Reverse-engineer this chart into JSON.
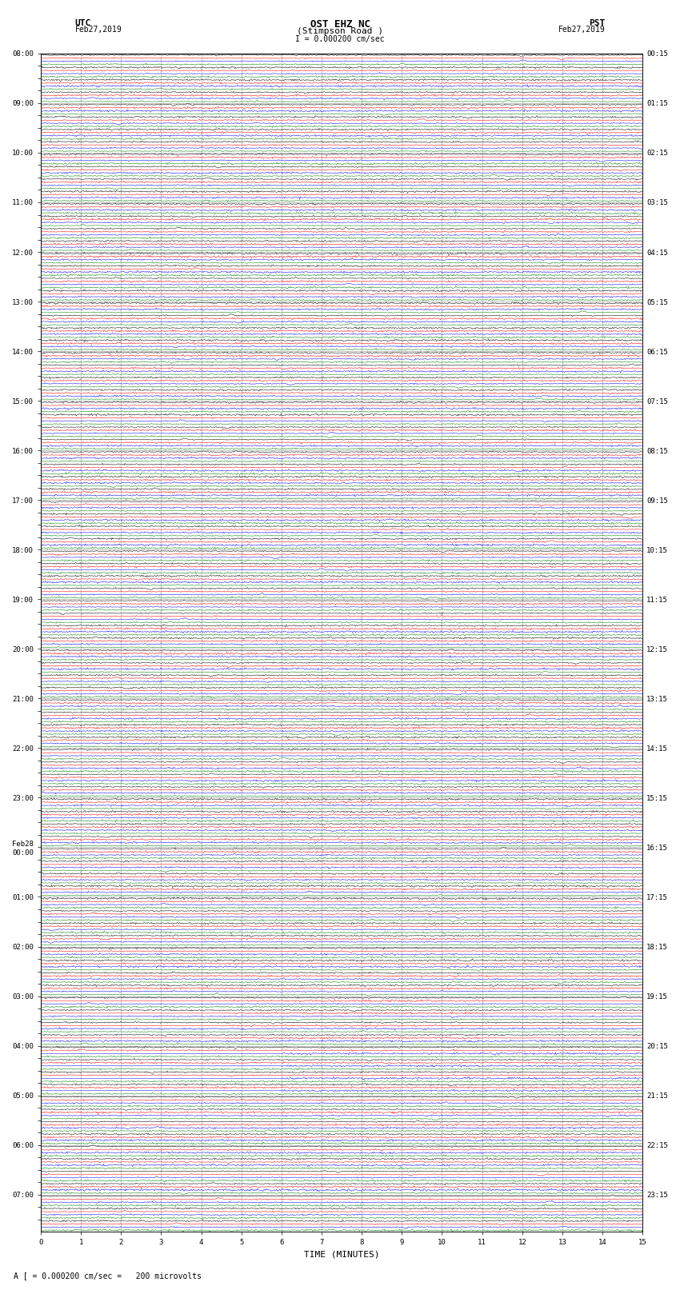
{
  "title_line1": "OST EHZ NC",
  "title_line2": "(Stimpson Road )",
  "scale_label": "I = 0.000200 cm/sec",
  "footer_label": "A [ = 0.000200 cm/sec =   200 microvolts",
  "utc_label": "UTC\nFeb27,2019",
  "pst_label": "PST\nFeb27,2019",
  "xlabel": "TIME (MINUTES)",
  "left_times": [
    "08:00",
    "",
    "",
    "",
    "09:00",
    "",
    "",
    "",
    "10:00",
    "",
    "",
    "",
    "11:00",
    "",
    "",
    "",
    "12:00",
    "",
    "",
    "",
    "13:00",
    "",
    "",
    "",
    "14:00",
    "",
    "",
    "",
    "15:00",
    "",
    "",
    "",
    "16:00",
    "",
    "",
    "",
    "17:00",
    "",
    "",
    "",
    "18:00",
    "",
    "",
    "",
    "19:00",
    "",
    "",
    "",
    "20:00",
    "",
    "",
    "",
    "21:00",
    "",
    "",
    "",
    "22:00",
    "",
    "",
    "",
    "23:00",
    "",
    "",
    "",
    "Feb28\n00:00",
    "",
    "",
    "",
    "01:00",
    "",
    "",
    "",
    "02:00",
    "",
    "",
    "",
    "03:00",
    "",
    "",
    "",
    "04:00",
    "",
    "",
    "",
    "05:00",
    "",
    "",
    "",
    "06:00",
    "",
    "",
    "",
    "07:00",
    "",
    ""
  ],
  "right_times": [
    "00:15",
    "",
    "",
    "",
    "01:15",
    "",
    "",
    "",
    "02:15",
    "",
    "",
    "",
    "03:15",
    "",
    "",
    "",
    "04:15",
    "",
    "",
    "",
    "05:15",
    "",
    "",
    "",
    "06:15",
    "",
    "",
    "",
    "07:15",
    "",
    "",
    "",
    "08:15",
    "",
    "",
    "",
    "09:15",
    "",
    "",
    "",
    "10:15",
    "",
    "",
    "",
    "11:15",
    "",
    "",
    "",
    "12:15",
    "",
    "",
    "",
    "13:15",
    "",
    "",
    "",
    "14:15",
    "",
    "",
    "",
    "15:15",
    "",
    "",
    "",
    "16:15",
    "",
    "",
    "",
    "17:15",
    "",
    "",
    "",
    "18:15",
    "",
    "",
    "",
    "19:15",
    "",
    "",
    "",
    "20:15",
    "",
    "",
    "",
    "21:15",
    "",
    "",
    "",
    "22:15",
    "",
    "",
    "",
    "23:15",
    "",
    ""
  ],
  "colors": [
    "black",
    "red",
    "blue",
    "green"
  ],
  "n_rows": 95,
  "n_samples": 900,
  "x_min": 0,
  "x_max": 15,
  "bg_color": "white",
  "grid_color": "#aaaaaa",
  "text_color": "black",
  "title_fontsize": 9,
  "label_fontsize": 7,
  "tick_fontsize": 6.5,
  "noisy_rows": [
    0,
    1,
    2,
    3,
    4,
    5,
    6,
    7,
    8,
    9,
    10,
    11,
    12,
    13,
    14,
    15,
    16,
    17,
    18,
    19,
    24,
    28,
    36,
    40,
    44,
    48,
    52,
    56,
    60,
    64,
    68,
    72,
    76,
    80,
    84,
    88,
    92
  ],
  "very_noisy_rows": [
    12,
    13,
    72,
    73,
    74,
    75,
    76,
    77,
    78,
    79,
    80,
    81,
    82,
    83,
    84,
    85,
    86,
    87,
    88,
    89
  ],
  "seed": 42
}
